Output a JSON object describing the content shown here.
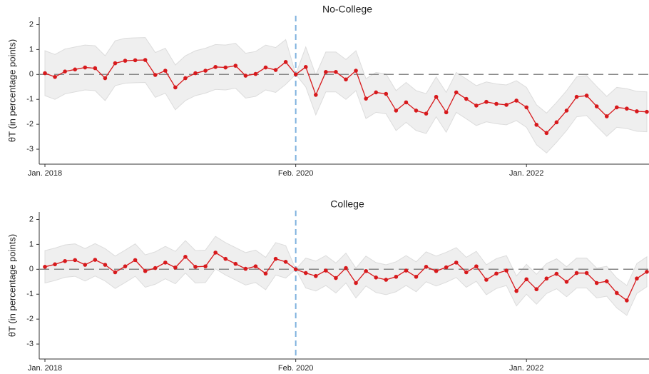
{
  "chart_data": [
    {
      "type": "line",
      "title": "No-College",
      "y_label": "θT (in percentage points)",
      "categories": [
        "Jan. 2018",
        null,
        null,
        null,
        null,
        null,
        null,
        null,
        null,
        null,
        null,
        null,
        null,
        null,
        null,
        null,
        null,
        null,
        null,
        null,
        null,
        null,
        null,
        null,
        null,
        "Feb. 2020",
        null,
        null,
        null,
        null,
        null,
        null,
        null,
        null,
        null,
        null,
        null,
        null,
        null,
        null,
        null,
        null,
        null,
        null,
        null,
        null,
        null,
        null,
        "Jan. 2022",
        null,
        null,
        null,
        null,
        null,
        null,
        null,
        null,
        null,
        null,
        null,
        null
      ],
      "ylim": [
        -3.6,
        2.3
      ],
      "yticks": [
        2,
        1,
        0,
        -1,
        -2,
        -3
      ],
      "color": "#d7191c",
      "band_color": "#efefef",
      "values": [
        0.05,
        -0.1,
        0.12,
        0.2,
        0.28,
        0.25,
        -0.15,
        0.45,
        0.55,
        0.57,
        0.58,
        -0.02,
        0.15,
        -0.52,
        -0.15,
        0.05,
        0.15,
        0.3,
        0.28,
        0.35,
        -0.05,
        0.02,
        0.28,
        0.18,
        0.5,
        0,
        0.3,
        -0.82,
        0.1,
        0.1,
        -0.2,
        0.15,
        -0.97,
        -0.72,
        -0.78,
        -1.45,
        -1.12,
        -1.45,
        -1.57,
        -0.9,
        -1.52,
        -0.72,
        -0.98,
        -1.25,
        -1.1,
        -1.18,
        -1.22,
        -1.05,
        -1.32,
        -2.02,
        -2.35,
        -1.92,
        -1.45,
        -0.9,
        -0.85,
        -1.28,
        -1.68,
        -1.32,
        -1.37,
        -1.48,
        -1.5
      ],
      "ci_upper": [
        0.95,
        0.8,
        1.02,
        1.1,
        1.18,
        1.15,
        0.75,
        1.35,
        1.45,
        1.47,
        1.48,
        0.88,
        1.05,
        0.38,
        0.75,
        0.95,
        1.05,
        1.2,
        1.18,
        1.25,
        0.85,
        0.92,
        1.18,
        1.08,
        1.4,
        0,
        1.1,
        -0.02,
        0.9,
        0.9,
        0.6,
        0.95,
        -0.17,
        0.08,
        0.02,
        -0.65,
        -0.32,
        -0.65,
        -0.77,
        -0.1,
        -0.72,
        0.08,
        -0.18,
        -0.45,
        -0.3,
        -0.38,
        -0.42,
        -0.25,
        -0.52,
        -1.22,
        -1.55,
        -1.12,
        -0.65,
        -0.1,
        -0.05,
        -0.48,
        -0.88,
        -0.52,
        -0.57,
        -0.68,
        -0.7
      ],
      "ci_lower": [
        -0.85,
        -1.0,
        -0.78,
        -0.7,
        -0.62,
        -0.65,
        -1.05,
        -0.45,
        -0.35,
        -0.33,
        -0.32,
        -0.92,
        -0.75,
        -1.42,
        -1.05,
        -0.85,
        -0.75,
        -0.6,
        -0.62,
        -0.55,
        -0.95,
        -0.88,
        -0.62,
        -0.72,
        -0.4,
        0,
        -0.5,
        -1.62,
        -0.7,
        -0.7,
        -1.0,
        -0.65,
        -1.77,
        -1.52,
        -1.58,
        -2.25,
        -1.92,
        -2.25,
        -2.37,
        -1.7,
        -2.32,
        -1.52,
        -1.78,
        -2.05,
        -1.9,
        -1.98,
        -2.02,
        -1.85,
        -2.12,
        -2.82,
        -3.15,
        -2.72,
        -2.25,
        -1.7,
        -1.65,
        -2.08,
        -2.48,
        -2.12,
        -2.17,
        -2.28,
        -2.3
      ]
    },
    {
      "type": "line",
      "title": "College",
      "y_label": "θT (in percentage points)",
      "categories": [
        "Jan. 2018",
        null,
        null,
        null,
        null,
        null,
        null,
        null,
        null,
        null,
        null,
        null,
        null,
        null,
        null,
        null,
        null,
        null,
        null,
        null,
        null,
        null,
        null,
        null,
        null,
        "Feb. 2020",
        null,
        null,
        null,
        null,
        null,
        null,
        null,
        null,
        null,
        null,
        null,
        null,
        null,
        null,
        null,
        null,
        null,
        null,
        null,
        null,
        null,
        null,
        "Jan. 2022",
        null,
        null,
        null,
        null,
        null,
        null,
        null,
        null,
        null,
        null,
        null,
        null
      ],
      "ylim": [
        -3.6,
        2.3
      ],
      "yticks": [
        2,
        1,
        0,
        -1,
        -2,
        -3
      ],
      "color": "#d7191c",
      "band_color": "#efefef",
      "values": [
        0.1,
        0.2,
        0.33,
        0.37,
        0.18,
        0.38,
        0.18,
        -0.12,
        0.12,
        0.37,
        -0.07,
        0.05,
        0.27,
        0.07,
        0.5,
        0.1,
        0.12,
        0.67,
        0.42,
        0.22,
        0.02,
        0.12,
        -0.17,
        0.42,
        0.3,
        0,
        -0.15,
        -0.27,
        -0.05,
        -0.35,
        0.05,
        -0.55,
        -0.07,
        -0.33,
        -0.42,
        -0.3,
        -0.05,
        -0.3,
        0.1,
        -0.07,
        0.08,
        0.27,
        -0.12,
        0.12,
        -0.42,
        -0.17,
        -0.05,
        -0.87,
        -0.4,
        -0.8,
        -0.37,
        -0.18,
        -0.5,
        -0.15,
        -0.15,
        -0.55,
        -0.48,
        -0.95,
        -1.25,
        -0.37,
        -0.1
      ],
      "ci_upper": [
        0.75,
        0.85,
        0.98,
        1.02,
        0.83,
        1.03,
        0.83,
        0.53,
        0.77,
        1.02,
        0.58,
        0.7,
        0.92,
        0.72,
        1.15,
        0.75,
        0.77,
        1.32,
        1.07,
        0.87,
        0.67,
        0.77,
        0.48,
        1.07,
        0.95,
        0,
        0.45,
        0.33,
        0.55,
        0.25,
        0.65,
        0.05,
        0.53,
        0.27,
        0.18,
        0.3,
        0.55,
        0.3,
        0.7,
        0.53,
        0.68,
        0.87,
        0.48,
        0.72,
        0.18,
        0.43,
        0.55,
        -0.27,
        0.2,
        -0.2,
        0.23,
        0.42,
        0.1,
        0.45,
        0.45,
        0.05,
        0.12,
        -0.35,
        -0.65,
        0.23,
        0.5
      ],
      "ci_lower": [
        -0.55,
        -0.45,
        -0.32,
        -0.28,
        -0.47,
        -0.27,
        -0.47,
        -0.77,
        -0.53,
        -0.28,
        -0.72,
        -0.6,
        -0.38,
        -0.58,
        -0.15,
        -0.55,
        -0.53,
        0.02,
        -0.23,
        -0.43,
        -0.63,
        -0.53,
        -0.82,
        -0.23,
        -0.35,
        0,
        -0.75,
        -0.87,
        -0.65,
        -0.95,
        -0.55,
        -1.15,
        -0.67,
        -0.93,
        -1.02,
        -0.9,
        -0.65,
        -0.9,
        -0.5,
        -0.67,
        -0.52,
        -0.33,
        -0.72,
        -0.48,
        -1.02,
        -0.77,
        -0.65,
        -1.47,
        -1.0,
        -1.4,
        -0.97,
        -0.78,
        -1.1,
        -0.75,
        -0.75,
        -1.15,
        -1.08,
        -1.55,
        -1.85,
        -0.97,
        -0.7
      ]
    }
  ]
}
